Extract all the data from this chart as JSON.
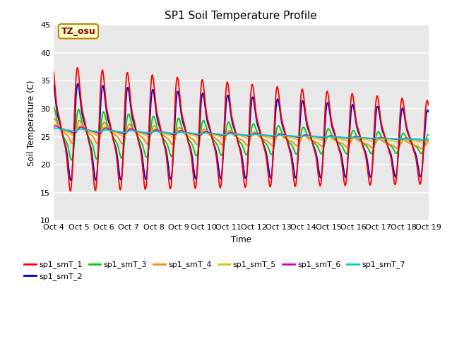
{
  "title": "SP1 Soil Temperature Profile",
  "xlabel": "Time",
  "ylabel": "Soil Temperature (C)",
  "ylim": [
    10,
    45
  ],
  "annotation": "TZ_osu",
  "annotation_color": "#8B0000",
  "annotation_bg": "#FFFFCC",
  "annotation_border": "#B8860B",
  "series_colors": {
    "sp1_smT_1": "#FF0000",
    "sp1_smT_2": "#0000CC",
    "sp1_smT_3": "#00CC00",
    "sp1_smT_4": "#FF8800",
    "sp1_smT_5": "#CCCC00",
    "sp1_smT_6": "#CC00CC",
    "sp1_smT_7": "#00CCCC"
  },
  "xtick_labels": [
    "Oct 4",
    "Oct 5",
    "Oct 6",
    "Oct 7",
    "Oct 8",
    "Oct 9",
    "Oct 10",
    "Oct 11",
    "Oct 12",
    "Oct 13",
    "Oct 14",
    "Oct 15",
    "Oct 16",
    "Oct 17",
    "Oct 18",
    "Oct 19"
  ],
  "n_days": 15,
  "samples_per_day": 288,
  "background_color": "#E8E8E8",
  "grid_color": "#FFFFFF"
}
